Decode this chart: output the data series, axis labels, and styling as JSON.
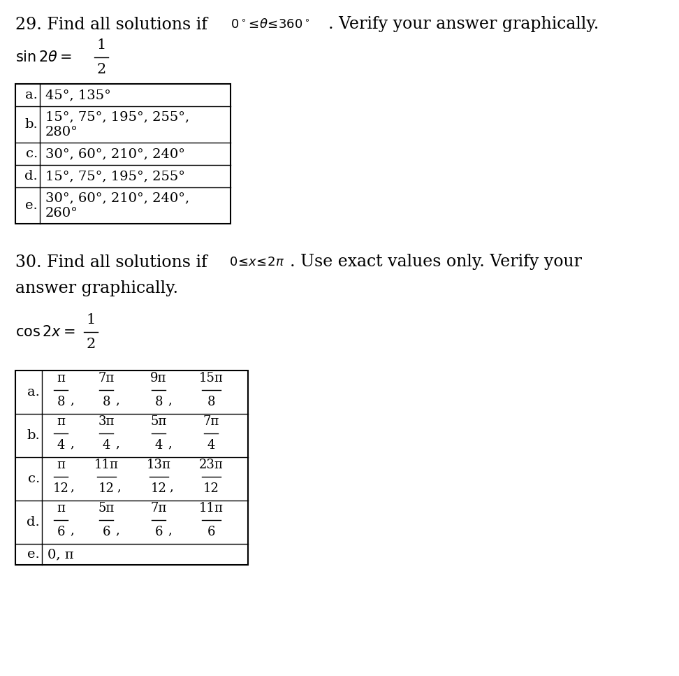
{
  "bg_color": "#ffffff",
  "table29_rows": [
    [
      "a.",
      "45°, 135°",
      false
    ],
    [
      "b.",
      "15°, 75°, 195°, 255°,",
      "280°"
    ],
    [
      "c.",
      "30°, 60°, 210°, 240°",
      false
    ],
    [
      "d.",
      "15°, 75°, 195°, 255°",
      false
    ],
    [
      "e.",
      "30°, 60°, 210°, 240°,",
      "260°"
    ]
  ],
  "table30_rows": [
    {
      "label": "a.",
      "fracs": [
        [
          "π",
          "8"
        ],
        [
          "7π",
          "8"
        ],
        [
          "9π",
          "8"
        ],
        [
          "15π",
          "8"
        ]
      ]
    },
    {
      "label": "b.",
      "fracs": [
        [
          "π",
          "4"
        ],
        [
          "3π",
          "4"
        ],
        [
          "5π",
          "4"
        ],
        [
          "7π",
          "4"
        ]
      ]
    },
    {
      "label": "c.",
      "fracs": [
        [
          "π",
          "12"
        ],
        [
          "11π",
          "12"
        ],
        [
          "13π",
          "12"
        ],
        [
          "23π",
          "12"
        ]
      ]
    },
    {
      "label": "d.",
      "fracs": [
        [
          "π",
          "6"
        ],
        [
          "5π",
          "6"
        ],
        [
          "7π",
          "6"
        ],
        [
          "11π",
          "6"
        ]
      ]
    },
    {
      "label": "e.",
      "text": "0, π"
    }
  ]
}
